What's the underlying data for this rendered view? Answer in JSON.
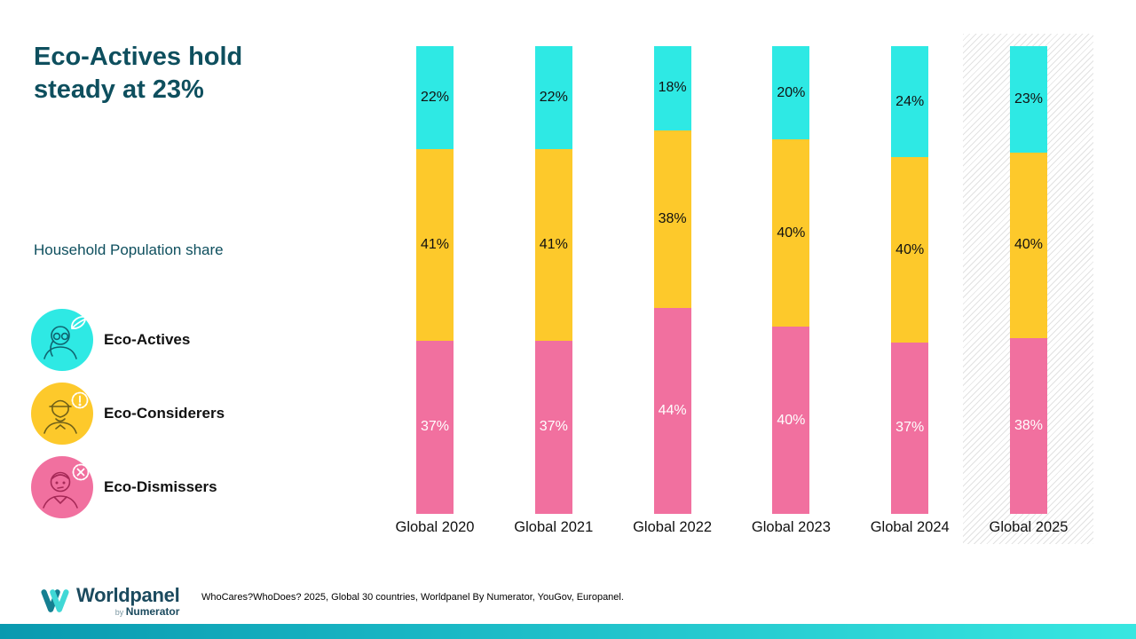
{
  "page": {
    "title_line1": "Eco-Actives hold",
    "title_line2": "steady at 23%",
    "subtitle": "Household Population share"
  },
  "legend": {
    "items": [
      {
        "label": "Eco-Actives",
        "color": "#2ee9e4",
        "icon": "person-leaf-icon"
      },
      {
        "label": "Eco-Considerers",
        "color": "#fdc92b",
        "icon": "person-alert-icon"
      },
      {
        "label": "Eco-Dismissers",
        "color": "#f1709f",
        "icon": "person-cross-icon"
      }
    ]
  },
  "chart_data": {
    "type": "bar",
    "stacked": true,
    "title": "Eco-Actives hold steady at 23%",
    "ylabel": "Household Population share (%)",
    "xlabel": "",
    "grid": false,
    "legend_position": "left",
    "ylim": [
      0,
      100
    ],
    "value_suffix": "%",
    "highlight_category": "Global 2025",
    "categories": [
      "Global 2020",
      "Global 2021",
      "Global 2022",
      "Global 2023",
      "Global 2024",
      "Global 2025"
    ],
    "series": [
      {
        "name": "Eco-Actives",
        "color": "#2ee9e4",
        "label_color": "#111111",
        "values": [
          22,
          22,
          18,
          20,
          24,
          23
        ]
      },
      {
        "name": "Eco-Considerers",
        "color": "#fdc92b",
        "label_color": "#111111",
        "values": [
          41,
          41,
          38,
          40,
          40,
          40
        ]
      },
      {
        "name": "Eco-Dismissers",
        "color": "#f1709f",
        "label_color": "#ffffff",
        "values": [
          37,
          37,
          44,
          40,
          37,
          38
        ]
      }
    ]
  },
  "footer": {
    "logo": {
      "brand": "Worldpanel",
      "by": "by ",
      "sub_brand": "Numerator"
    },
    "source": "WhoCares?WhoDoes? 2025, Global 30 countries, Worldpanel By Numerator, YouGov, Europanel."
  },
  "colors": {
    "title": "#0e4f5e",
    "bottom_bar_start": "#0999af",
    "bottom_bar_end": "#38e7e1"
  }
}
